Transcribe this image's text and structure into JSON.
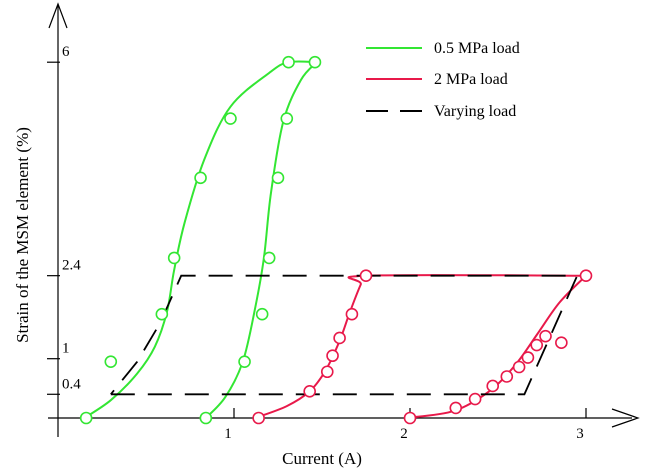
{
  "chart_data": {
    "type": "line",
    "xlabel": "Current (A)",
    "ylabel": "Strain of the MSM element (%)",
    "xlim": [
      0,
      3.3
    ],
    "ylim": [
      0,
      6.4
    ],
    "x_ticks": [
      {
        "value": 1,
        "label": "1"
      },
      {
        "value": 2,
        "label": "2"
      },
      {
        "value": 3,
        "label": "3"
      }
    ],
    "y_ticks": [
      {
        "value": 0.4,
        "label": "0.4"
      },
      {
        "value": 1,
        "label": "1"
      },
      {
        "value": 2.4,
        "label": "2.4"
      },
      {
        "value": 6,
        "label": "6"
      }
    ],
    "grid": false,
    "legend_position": "top-right",
    "series": [
      {
        "name": "0.5 MPa load",
        "color": "#33e633",
        "style": "solid",
        "marker": "circle",
        "lines": [
          [
            [
              0.15,
              0
            ],
            [
              0.3,
              0.3
            ],
            [
              0.45,
              0.75
            ],
            [
              0.55,
              1.2
            ],
            [
              0.62,
              1.8
            ],
            [
              0.66,
              2.5
            ],
            [
              0.72,
              3.3
            ],
            [
              0.83,
              4.35
            ],
            [
              0.98,
              5.25
            ],
            [
              1.2,
              5.82
            ],
            [
              1.31,
              6
            ],
            [
              1.47,
              6
            ]
          ],
          [
            [
              0.84,
              0
            ],
            [
              0.95,
              0.35
            ],
            [
              1.05,
              0.95
            ],
            [
              1.12,
              1.85
            ],
            [
              1.17,
              2.7
            ],
            [
              1.21,
              3.8
            ],
            [
              1.28,
              5
            ],
            [
              1.38,
              5.7
            ],
            [
              1.47,
              6
            ]
          ]
        ],
        "markers": [
          [
            0.16,
            0
          ],
          [
            0.3,
            0.95
          ],
          [
            0.59,
            1.75
          ],
          [
            0.66,
            2.7
          ],
          [
            0.81,
            4.05
          ],
          [
            0.98,
            5.05
          ],
          [
            1.31,
            6
          ],
          [
            1.46,
            6
          ],
          [
            1.3,
            5.05
          ],
          [
            1.25,
            4.05
          ],
          [
            1.2,
            2.7
          ],
          [
            1.16,
            1.75
          ],
          [
            1.06,
            0.95
          ],
          [
            0.84,
            0
          ]
        ]
      },
      {
        "name": "2 MPa load",
        "color": "#e8194a",
        "style": "solid",
        "marker": "circle",
        "lines": [
          [
            [
              1.12,
              0
            ],
            [
              1.3,
              0.2
            ],
            [
              1.43,
              0.45
            ],
            [
              1.52,
              0.8
            ],
            [
              1.6,
              1.3
            ],
            [
              1.66,
              1.8
            ],
            [
              1.72,
              2.25
            ],
            [
              1.75,
              2.4
            ],
            [
              3,
              2.4
            ]
          ],
          [
            [
              1.98,
              0
            ],
            [
              2.25,
              0.12
            ],
            [
              2.45,
              0.45
            ],
            [
              2.6,
              0.9
            ],
            [
              2.72,
              1.4
            ],
            [
              2.85,
              1.95
            ],
            [
              3,
              2.4
            ]
          ]
        ],
        "markers": [
          [
            1.14,
            0
          ],
          [
            1.43,
            0.45
          ],
          [
            1.53,
            0.78
          ],
          [
            1.56,
            1.05
          ],
          [
            1.6,
            1.35
          ],
          [
            1.67,
            1.75
          ],
          [
            1.75,
            2.4
          ],
          [
            2.0,
            0
          ],
          [
            2.26,
            0.17
          ],
          [
            2.37,
            0.32
          ],
          [
            2.47,
            0.54
          ],
          [
            2.55,
            0.7
          ],
          [
            2.62,
            0.86
          ],
          [
            2.67,
            1.02
          ],
          [
            2.72,
            1.23
          ],
          [
            2.77,
            1.38
          ],
          [
            2.86,
            1.27
          ],
          [
            3.0,
            2.4
          ]
        ]
      },
      {
        "name": "Varying load",
        "color": "#000000",
        "style": "dashed",
        "marker": "none",
        "lines": [
          [
            [
              0.3,
              0.4
            ],
            [
              2.65,
              0.4
            ],
            [
              2.95,
              2.4
            ],
            [
              0.7,
              2.4
            ],
            [
              0.58,
              1.6
            ],
            [
              0.45,
              0.95
            ],
            [
              0.3,
              0.4
            ]
          ]
        ]
      }
    ]
  }
}
